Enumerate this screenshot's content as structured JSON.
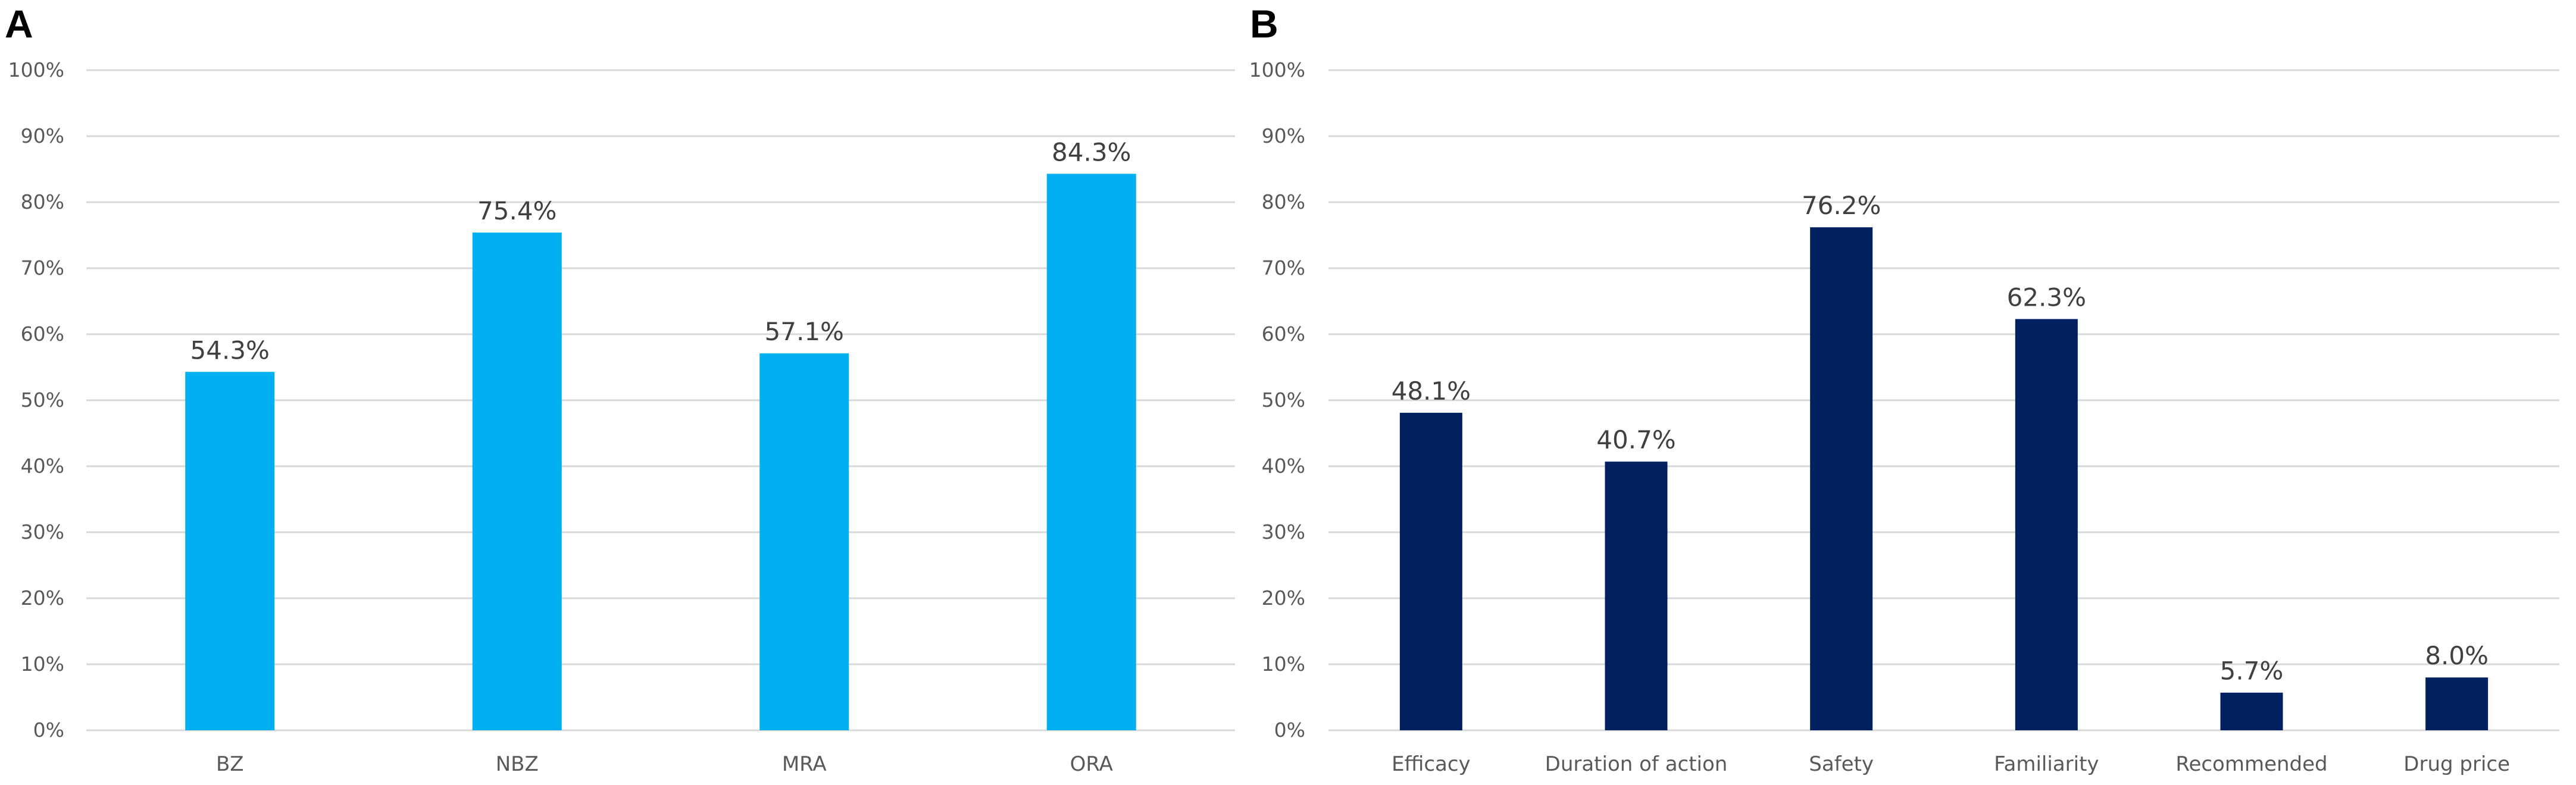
{
  "chart_data": [
    {
      "panel": "A",
      "type": "bar",
      "categories": [
        "BZ",
        "NBZ",
        "MRA",
        "ORA"
      ],
      "values": [
        54.3,
        75.4,
        57.1,
        84.3
      ],
      "data_labels": [
        "54.3%",
        "75.4%",
        "57.1%",
        "84.3%"
      ],
      "y_ticks": [
        "0%",
        "10%",
        "20%",
        "30%",
        "40%",
        "50%",
        "60%",
        "70%",
        "80%",
        "90%",
        "100%"
      ],
      "ylim": [
        0,
        100
      ],
      "grid": true,
      "bar_color": "#00B0F0",
      "title": "",
      "xlabel": "",
      "ylabel": ""
    },
    {
      "panel": "B",
      "type": "bar",
      "categories": [
        "Efficacy",
        "Duration of action",
        "Safety",
        "Familiarity",
        "Recommended",
        "Drug price"
      ],
      "values": [
        48.1,
        40.7,
        76.2,
        62.3,
        5.7,
        8.0
      ],
      "data_labels": [
        "48.1%",
        "40.7%",
        "76.2%",
        "62.3%",
        "5.7%",
        "8.0%"
      ],
      "y_ticks": [
        "0%",
        "10%",
        "20%",
        "30%",
        "40%",
        "50%",
        "60%",
        "70%",
        "80%",
        "90%",
        "100%"
      ],
      "ylim": [
        0,
        100
      ],
      "grid": true,
      "bar_color": "#002060",
      "title": "",
      "xlabel": "",
      "ylabel": ""
    }
  ],
  "grid_color": "#D9D9D9"
}
